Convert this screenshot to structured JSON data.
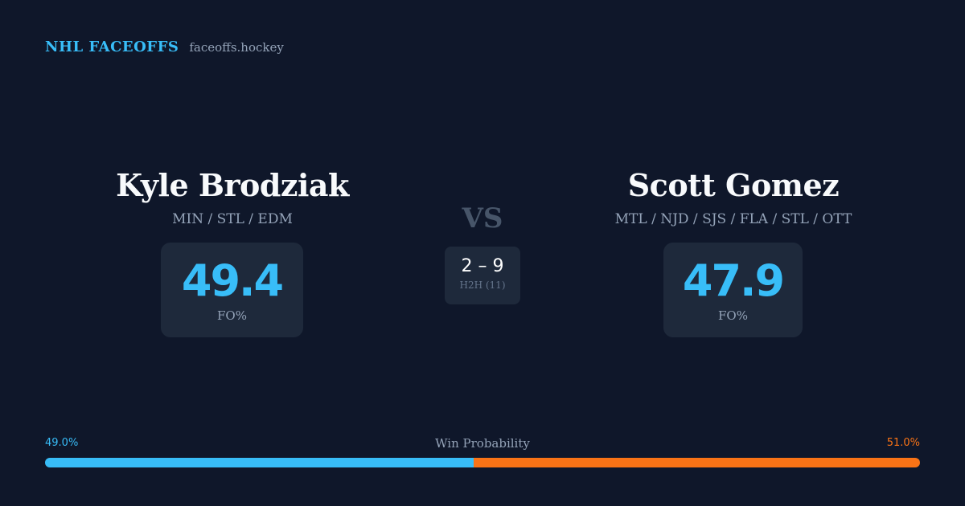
{
  "brand": {
    "name": "NHL FACEOFFS",
    "domain": "faceoffs.hockey"
  },
  "colors": {
    "accent_blue": "#38bdf8",
    "accent_orange": "#f97316",
    "background": "#0f172a",
    "card": "#1e293b",
    "muted_text": "#94a3b8"
  },
  "players": [
    {
      "name": "Kyle Brodziak",
      "teams": "MIN / STL / EDM",
      "fo_pct": "49.4",
      "fo_label": "FO%"
    },
    {
      "name": "Scott Gomez",
      "teams": "MTL / NJD / SJS / FLA / STL / OTT",
      "fo_pct": "47.9",
      "fo_label": "FO%"
    }
  ],
  "vs_label": "VS",
  "h2h": {
    "score": "2 – 9",
    "label": "H2H (11)"
  },
  "win_probability": {
    "title": "Win Probability",
    "left_label": "49.0%",
    "right_label": "51.0%",
    "left_value": 49.0,
    "right_value": 51.0
  }
}
